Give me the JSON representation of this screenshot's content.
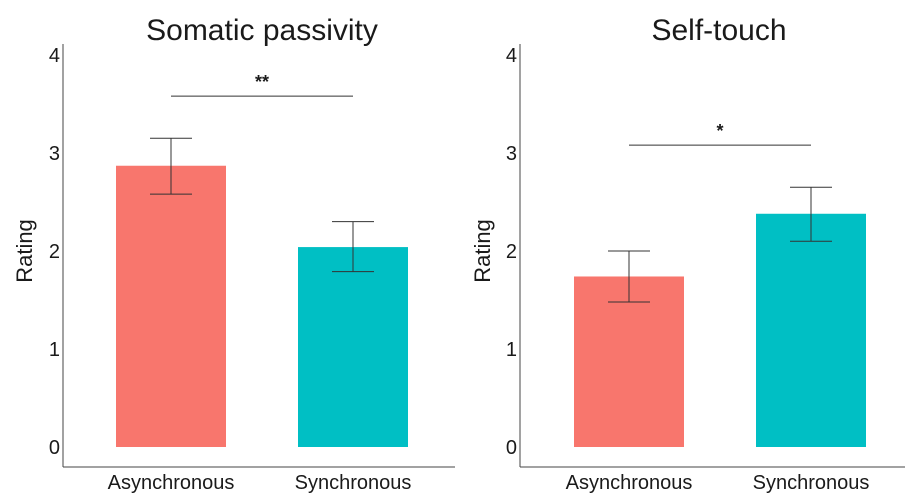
{
  "chart_data": [
    {
      "type": "bar",
      "title": "Somatic passivity",
      "xlabel": "",
      "ylabel": "Rating",
      "categories": [
        "Asynchronous",
        "Synchronous"
      ],
      "values": [
        2.87,
        2.04
      ],
      "error_low": [
        2.58,
        1.79
      ],
      "error_high": [
        3.15,
        2.3
      ],
      "colors": [
        "#F8766D",
        "#00BFC4"
      ],
      "ylim": [
        0,
        4
      ],
      "yticks": [
        "0",
        "1",
        "2",
        "3",
        "4"
      ],
      "significance": {
        "label": "**",
        "between": [
          "Asynchronous",
          "Synchronous"
        ],
        "y": 3.58
      },
      "grid": false,
      "legend": "none"
    },
    {
      "type": "bar",
      "title": "Self-touch",
      "xlabel": "",
      "ylabel": "Rating",
      "categories": [
        "Asynchronous",
        "Synchronous"
      ],
      "values": [
        1.74,
        2.38
      ],
      "error_low": [
        1.48,
        2.1
      ],
      "error_high": [
        2.0,
        2.65
      ],
      "colors": [
        "#F8766D",
        "#00BFC4"
      ],
      "ylim": [
        0,
        4
      ],
      "yticks": [
        "0",
        "1",
        "2",
        "3",
        "4"
      ],
      "significance": {
        "label": "*",
        "between": [
          "Asynchronous",
          "Synchronous"
        ],
        "y": 3.08
      },
      "grid": false,
      "legend": "none"
    }
  ]
}
